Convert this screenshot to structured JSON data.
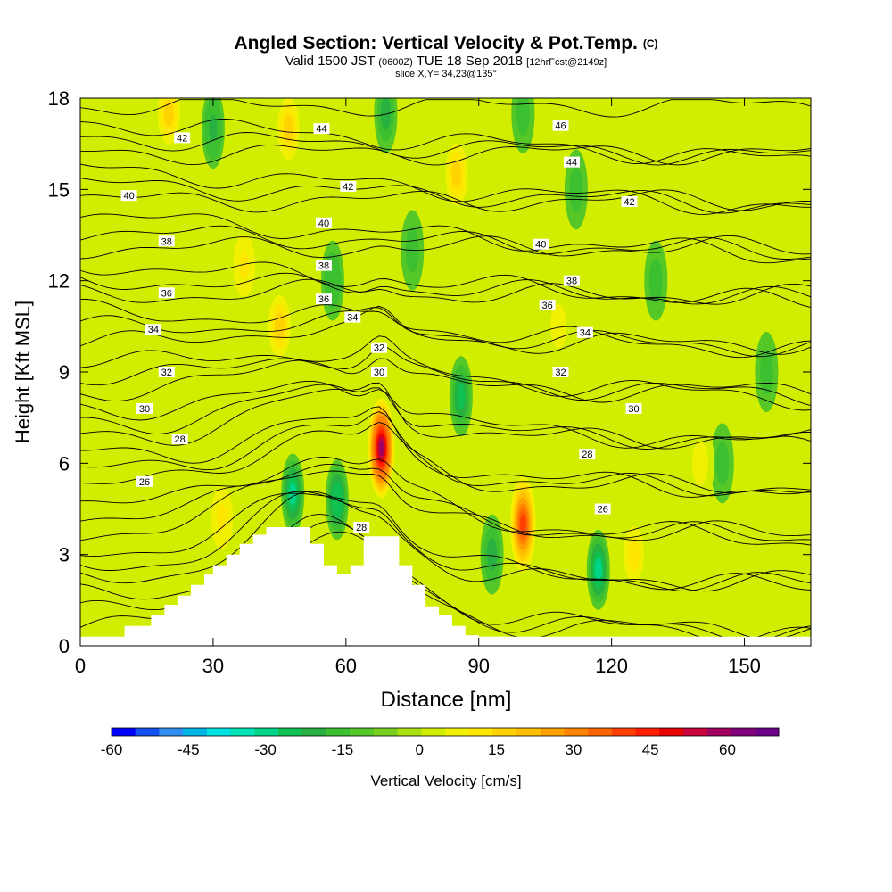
{
  "header": {
    "title": "Angled Section: Vertical Velocity & Pot.Temp.",
    "title_unit": "(C)",
    "valid_prefix": "Valid 1500 JST",
    "valid_z": "(0600Z)",
    "valid_date": "TUE 18 Sep 2018",
    "forecast": "[12hrFcst@2149z]",
    "slice": "slice X,Y= 34,23@135°"
  },
  "chart_data": {
    "type": "heatmap",
    "title": "Angled Section: Vertical Velocity & Pot.Temp. (C)",
    "xlabel": "Distance [nm]",
    "ylabel": "Height [Kft MSL]",
    "xlim": [
      0,
      165
    ],
    "ylim": [
      0,
      18
    ],
    "x_ticks": [
      0,
      30,
      60,
      90,
      120,
      150
    ],
    "y_ticks": [
      0,
      3,
      6,
      9,
      12,
      15,
      18
    ],
    "colorbar": {
      "label": "Vertical Velocity [cm/s]",
      "min": -60,
      "max": 70,
      "step": 5,
      "ticks": [
        -60,
        -45,
        -30,
        -15,
        0,
        15,
        30,
        45,
        60
      ],
      "colors": [
        "#0000ff",
        "#1450f0",
        "#2f8ef0",
        "#00b4e8",
        "#00e1e1",
        "#00e3b5",
        "#00d488",
        "#10c050",
        "#28b040",
        "#3cc030",
        "#55c828",
        "#7ad020",
        "#a8e010",
        "#d2ee00",
        "#f0f000",
        "#ffe600",
        "#ffd200",
        "#ffbe00",
        "#ffa000",
        "#ff8200",
        "#ff6400",
        "#ff4000",
        "#ff1e00",
        "#e60000",
        "#c8003c",
        "#a00060",
        "#82007a",
        "#6a008a"
      ]
    },
    "terrain": [
      [
        0,
        0.3
      ],
      [
        10,
        0.3
      ],
      [
        10,
        0.65
      ],
      [
        16,
        0.65
      ],
      [
        16,
        1.0
      ],
      [
        19,
        1.0
      ],
      [
        19,
        1.35
      ],
      [
        22,
        1.35
      ],
      [
        22,
        1.65
      ],
      [
        25,
        1.65
      ],
      [
        25,
        2.0
      ],
      [
        28,
        2.0
      ],
      [
        28,
        2.35
      ],
      [
        30,
        2.35
      ],
      [
        30,
        2.65
      ],
      [
        33,
        2.65
      ],
      [
        33,
        3.0
      ],
      [
        36,
        3.0
      ],
      [
        36,
        3.35
      ],
      [
        39,
        3.35
      ],
      [
        39,
        3.65
      ],
      [
        42,
        3.65
      ],
      [
        42,
        3.9
      ],
      [
        52,
        3.9
      ],
      [
        52,
        3.35
      ],
      [
        55,
        3.35
      ],
      [
        55,
        2.65
      ],
      [
        58,
        2.65
      ],
      [
        58,
        2.35
      ],
      [
        61,
        2.35
      ],
      [
        61,
        2.65
      ],
      [
        64,
        2.65
      ],
      [
        64,
        3.6
      ],
      [
        72,
        3.6
      ],
      [
        72,
        2.65
      ],
      [
        75,
        2.65
      ],
      [
        75,
        2.0
      ],
      [
        78,
        2.0
      ],
      [
        78,
        1.3
      ],
      [
        81,
        1.3
      ],
      [
        81,
        1.0
      ],
      [
        84,
        1.0
      ],
      [
        84,
        0.65
      ],
      [
        87,
        0.65
      ],
      [
        87,
        0.35
      ],
      [
        90,
        0.35
      ],
      [
        90,
        0.3
      ],
      [
        165,
        0.3
      ]
    ],
    "updrafts": [
      {
        "x": 68,
        "y": 6.5,
        "value": 68
      },
      {
        "x": 100,
        "y": 4.0,
        "value": 45
      },
      {
        "x": 45,
        "y": 10.5,
        "value": 22
      },
      {
        "x": 20,
        "y": 17.5,
        "value": 22
      },
      {
        "x": 47,
        "y": 17.0,
        "value": 20
      },
      {
        "x": 85,
        "y": 15.5,
        "value": 20
      },
      {
        "x": 37,
        "y": 12.5,
        "value": 18
      },
      {
        "x": 32,
        "y": 4.2,
        "value": 18
      },
      {
        "x": 125,
        "y": 3.0,
        "value": 14
      },
      {
        "x": 108,
        "y": 10.5,
        "value": 12
      },
      {
        "x": 140,
        "y": 6.0,
        "value": 12
      }
    ],
    "downdrafts": [
      {
        "x": 48,
        "y": 5.0,
        "value": -25
      },
      {
        "x": 58,
        "y": 4.8,
        "value": -24
      },
      {
        "x": 117,
        "y": 2.5,
        "value": -25
      },
      {
        "x": 86,
        "y": 8.2,
        "value": -20
      },
      {
        "x": 93,
        "y": 3.0,
        "value": -15
      },
      {
        "x": 30,
        "y": 17.0,
        "value": -18
      },
      {
        "x": 69,
        "y": 17.5,
        "value": -16
      },
      {
        "x": 57,
        "y": 12.0,
        "value": -14
      },
      {
        "x": 100,
        "y": 17.5,
        "value": -12
      },
      {
        "x": 130,
        "y": 12.0,
        "value": -10
      },
      {
        "x": 145,
        "y": 6.0,
        "value": -12
      },
      {
        "x": 75,
        "y": 13.0,
        "value": -12
      },
      {
        "x": 112,
        "y": 15.0,
        "value": -10
      },
      {
        "x": 155,
        "y": 9.0,
        "value": -10
      }
    ],
    "isentrope_labels": [
      {
        "text": "42",
        "x": 23,
        "y": 16.7
      },
      {
        "text": "40",
        "x": 11,
        "y": 14.8
      },
      {
        "text": "38",
        "x": 19.5,
        "y": 13.3
      },
      {
        "text": "36",
        "x": 19.5,
        "y": 11.6
      },
      {
        "text": "34",
        "x": 16.5,
        "y": 10.4
      },
      {
        "text": "32",
        "x": 19.5,
        "y": 9.0
      },
      {
        "text": "30",
        "x": 14.5,
        "y": 7.8
      },
      {
        "text": "28",
        "x": 22.5,
        "y": 6.8
      },
      {
        "text": "26",
        "x": 14.5,
        "y": 5.4
      },
      {
        "text": "44",
        "x": 54.5,
        "y": 17.0
      },
      {
        "text": "42",
        "x": 60.5,
        "y": 15.1
      },
      {
        "text": "40",
        "x": 55,
        "y": 13.9
      },
      {
        "text": "38",
        "x": 55,
        "y": 12.5
      },
      {
        "text": "36",
        "x": 55,
        "y": 11.4
      },
      {
        "text": "34",
        "x": 61.5,
        "y": 10.8
      },
      {
        "text": "32",
        "x": 67.5,
        "y": 9.8
      },
      {
        "text": "30",
        "x": 67.5,
        "y": 9.0
      },
      {
        "text": "28",
        "x": 63.5,
        "y": 3.9
      },
      {
        "text": "46",
        "x": 108.5,
        "y": 17.1
      },
      {
        "text": "44",
        "x": 111,
        "y": 15.9
      },
      {
        "text": "42",
        "x": 124,
        "y": 14.6
      },
      {
        "text": "40",
        "x": 104,
        "y": 13.2
      },
      {
        "text": "38",
        "x": 111,
        "y": 12.0
      },
      {
        "text": "36",
        "x": 105.5,
        "y": 11.2
      },
      {
        "text": "34",
        "x": 114,
        "y": 10.3
      },
      {
        "text": "32",
        "x": 108.5,
        "y": 9.0
      },
      {
        "text": "30",
        "x": 125,
        "y": 7.8
      },
      {
        "text": "28",
        "x": 114.5,
        "y": 6.3
      },
      {
        "text": "26",
        "x": 118,
        "y": 4.5
      }
    ]
  }
}
